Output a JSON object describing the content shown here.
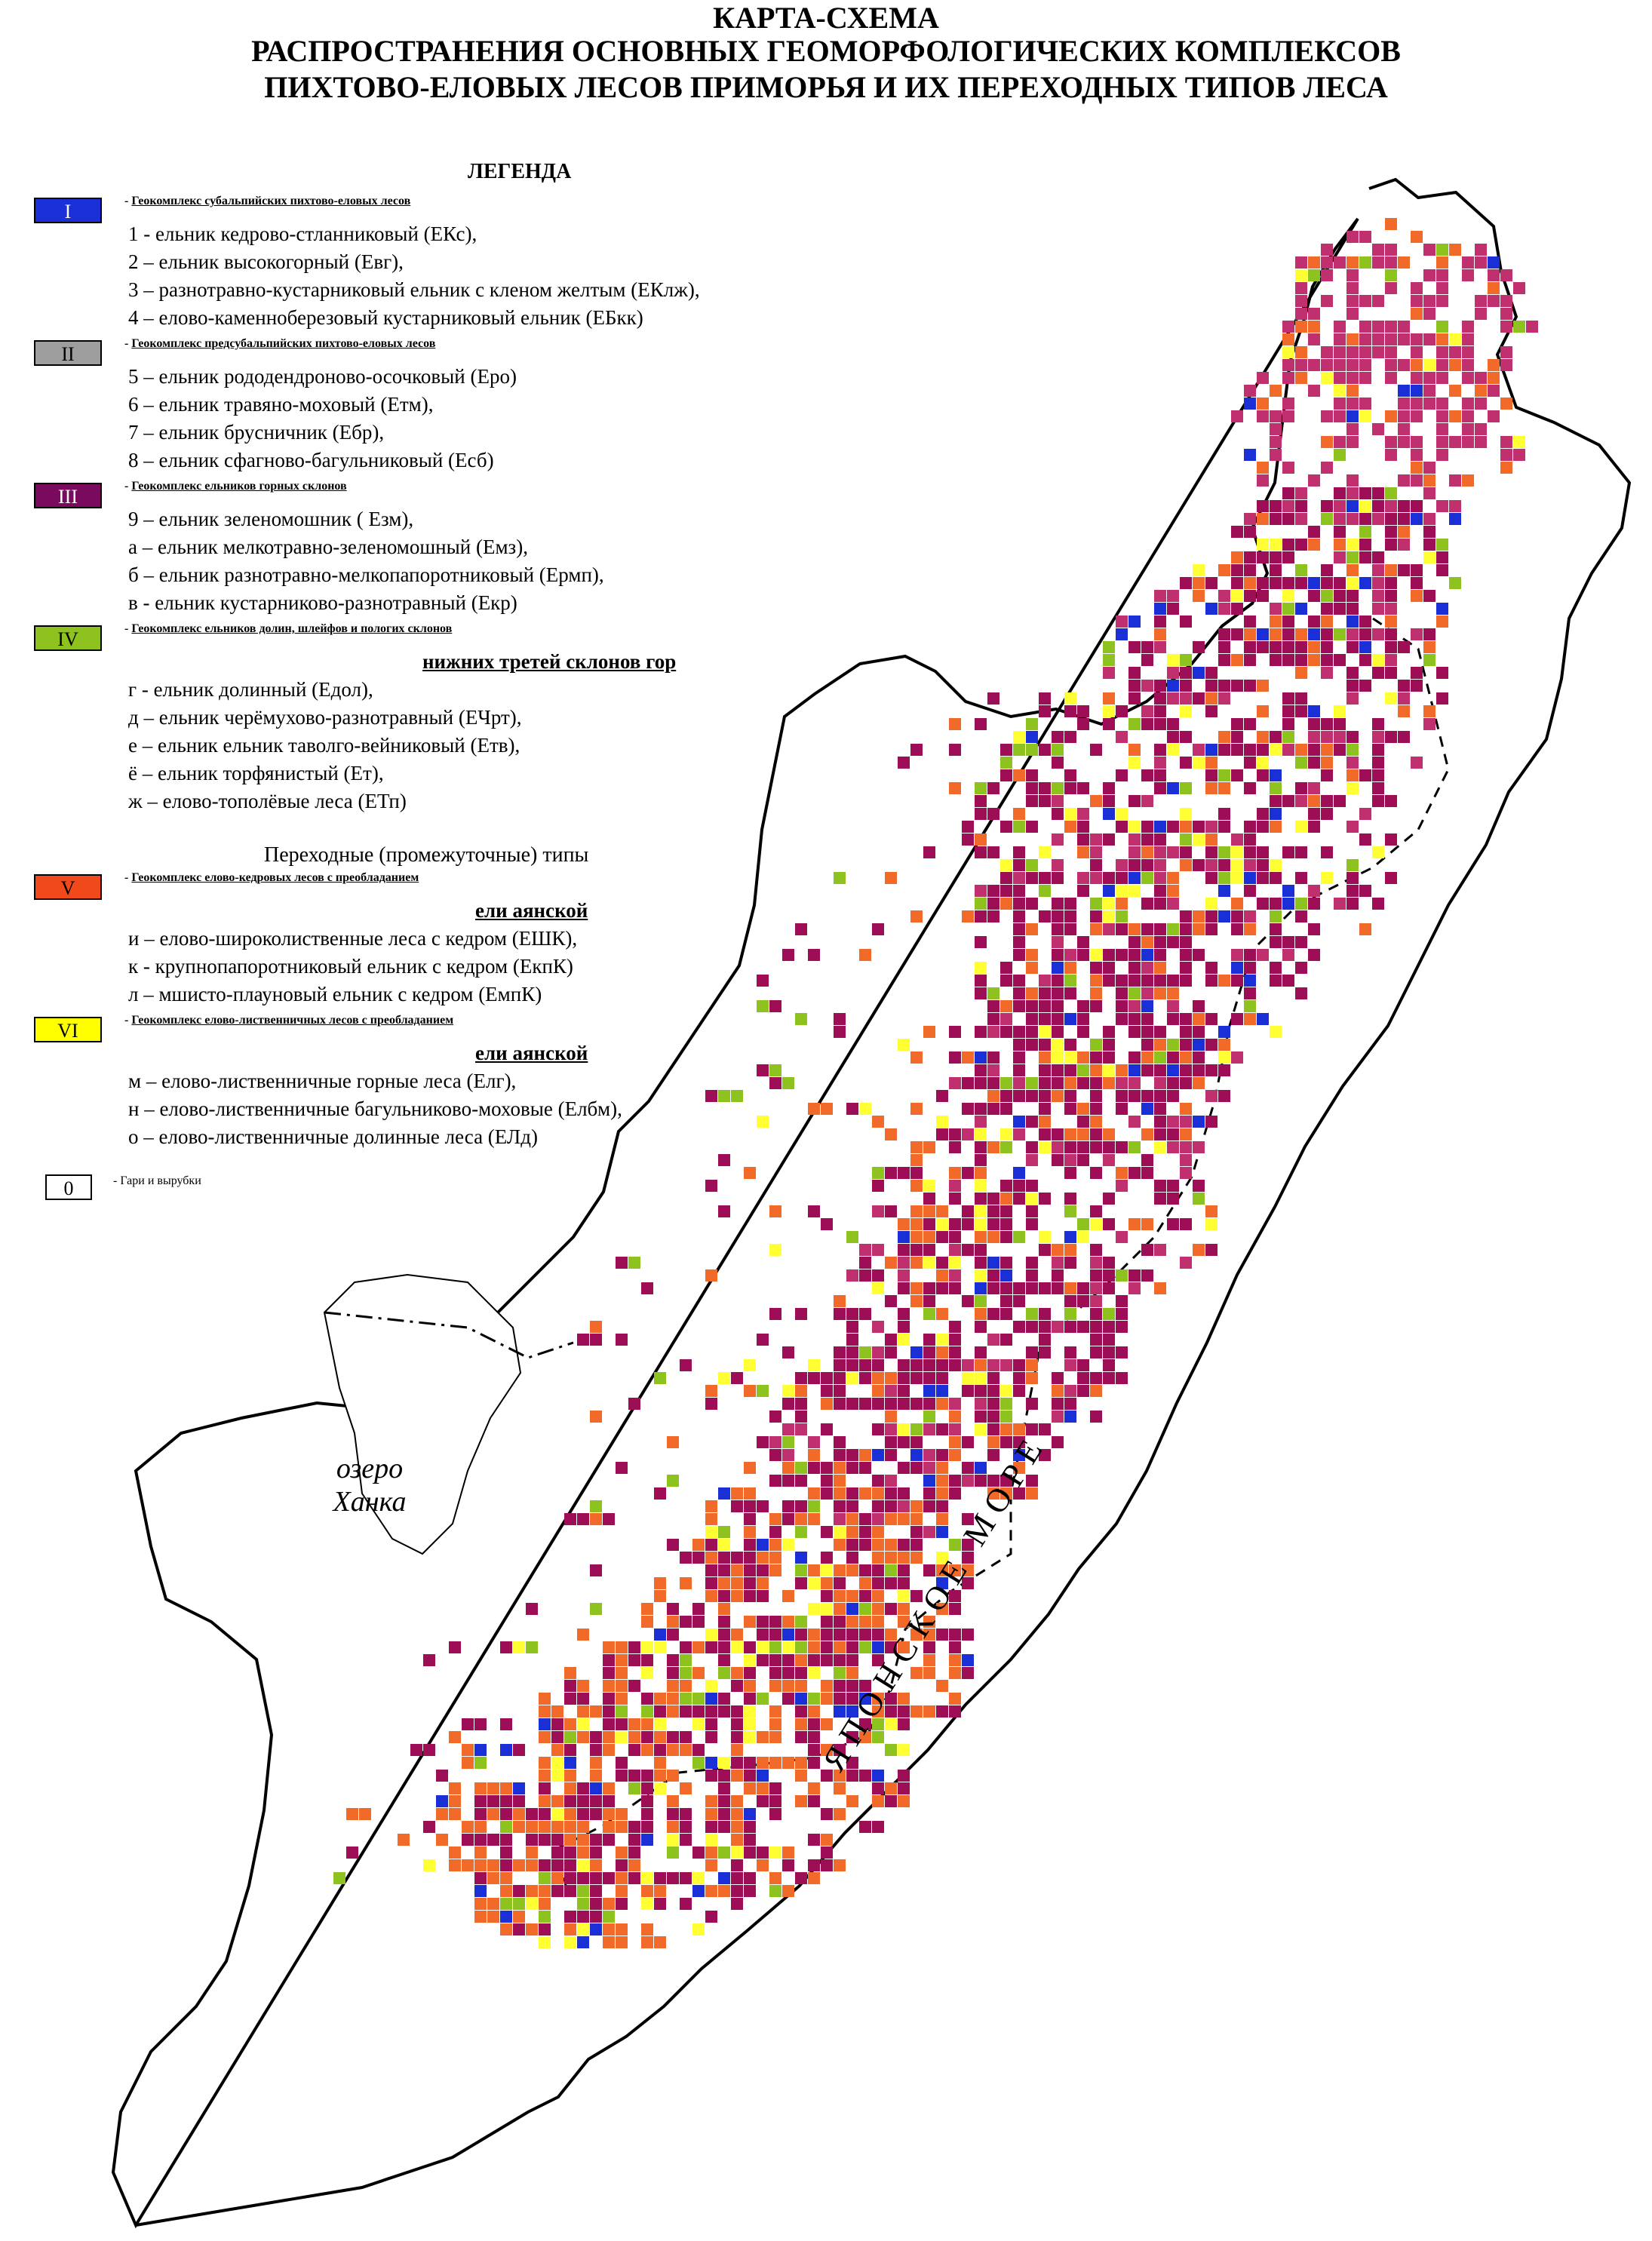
{
  "title": {
    "line1": "КАРТА-СХЕМА",
    "line2": "РАСПРОСТРАНЕНИЯ ОСНОВНЫХ ГЕОМОРФОЛОГИЧЕСКИХ КОМПЛЕКСОВ",
    "line3": "ПИХТОВО-ЕЛОВЫХ ЛЕСОВ ПРИМОРЬЯ И ИХ ПЕРЕХОДНЫХ  ТИПОВ ЛЕСА"
  },
  "legend": {
    "heading": "ЛЕГЕНДА",
    "groups": [
      {
        "swatch": "I",
        "color": "#1a2fd6",
        "textColor": "#ffffff",
        "prefix": "- ",
        "title": "Геокомплекс субальпийских пихтово-еловых лесов",
        "items": [
          "1 - ельник кедрово-стланниковый  (ЕКс),",
          "2 – ельник высокогорный (Евг),",
          "3 – разнотравно-кустарниковый ельник с кленом желтым (ЕКлж),",
          "4 – елово-каменноберезовый кустарниковый ельник (ЕБкк)"
        ]
      },
      {
        "swatch": "II",
        "color": "#9e9e9e",
        "textColor": "#000000",
        "prefix": "- ",
        "title": "Геокомплекс предсубальпийских пихтово-еловых лесов",
        "items": [
          "5 – ельник рододендроново-осочковый (Еро)",
          "6 – ельник травяно-моховый (Етм),",
          "7 – ельник брусничник (Ебр),",
          "8 – ельник сфагново-багульниковый (Есб)"
        ]
      },
      {
        "swatch": "III",
        "color": "#7a0a5e",
        "textColor": "#ffffff",
        "prefix": " - ",
        "title": "Геокомплекс ельников горных склонов",
        "items": [
          "9 – ельник зеленомошник ( Езм),",
          "а – ельник мелкотравно-зеленомошный (Емз),",
          "б – ельник разнотравно-мелкопапоротниковый (Ермп),",
          "в -  ельник кустарниково-разнотравный (Екр)"
        ]
      },
      {
        "swatch": "IV",
        "color": "#8dc21f",
        "textColor": "#000000",
        "prefix": "- ",
        "title": "Геокомплекс ельников долин, шлейфов и пологих склонов",
        "title2": "нижних третей склонов гор",
        "items": [
          "г - ельник долинный (Едол),",
          "д – ельник черёмухово-разнотравный (ЕЧрт),",
          "е – ельник ельник таволго-вейниковый (Етв),",
          "ё – ельник торфянистый (Ет),",
          "ж – елово-тополёвые леса (ЕТп)"
        ]
      }
    ],
    "transitional_heading": "Переходные (промежуточные)  типы",
    "transitional_groups": [
      {
        "swatch": "V",
        "color": "#f04a1c",
        "textColor": "#000000",
        "prefix": "- ",
        "title": "Геокомплекс елово-кедровых лесов с преобладанием",
        "title2": "ели   аянской",
        "items": [
          "и – елово-широколиственные леса с кедром (ЕШК),",
          "к -  крупнопапоротниковый ельник с кедром (ЕкпК)",
          "л – мшисто-плауновый ельник с кедром (ЕмпК)"
        ]
      },
      {
        "swatch": "VI",
        "color": "#ffff00",
        "textColor": "#000000",
        "prefix": "- ",
        "title": "Геокомплекс елово-лиственничных лесов с преобладанием",
        "title2": "ели аянской",
        "items": [
          "м – елово-лиственничные горные леса (Елг),",
          "н – елово-лиственничные багульниково-моховые (Елбм),",
          "о – елово-лиственничные долинные леса (ЕЛд)"
        ]
      }
    ],
    "burnt": {
      "swatch": "0",
      "label": "-  Гари и вырубки"
    }
  },
  "labels": {
    "lake_line1": "озеро",
    "lake_line2": "Ханка",
    "sea": "Я П О Н С К О Е   М О Р Е"
  },
  "colors": {
    "I": "#1a2fd6",
    "II": "#c8c8c8",
    "III": "#9e0e56",
    "IIIb": "#c0306e",
    "IV": "#8dc21f",
    "V": "#f26a2a",
    "VI": "#ffff33"
  }
}
